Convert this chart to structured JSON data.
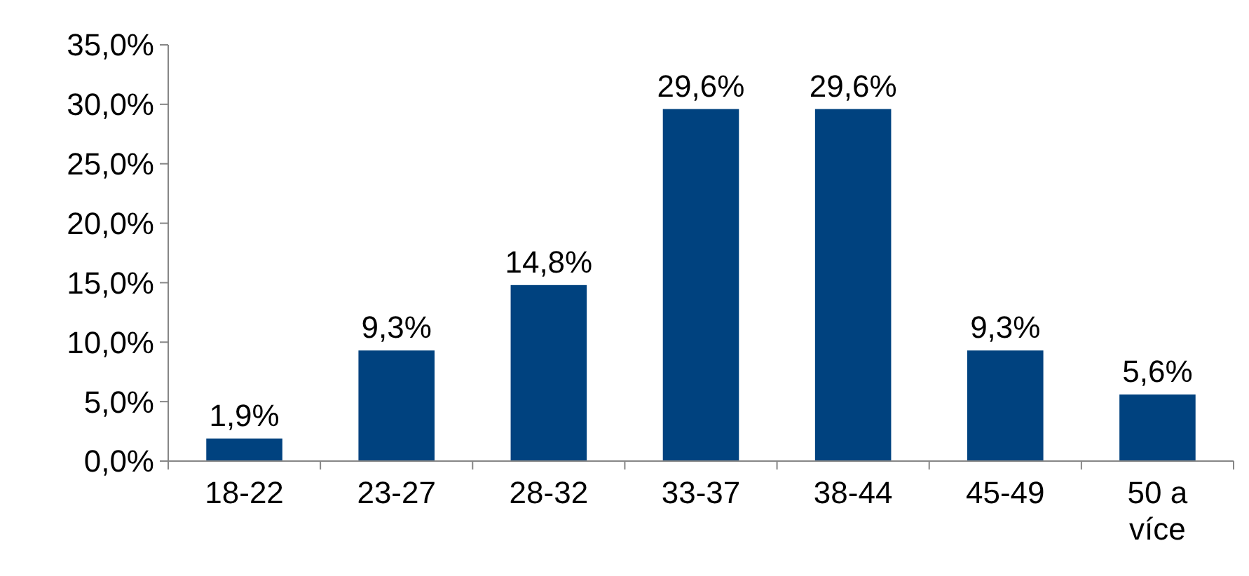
{
  "chart_data": {
    "type": "bar",
    "categories": [
      "18-22",
      "23-27",
      "28-32",
      "33-37",
      "38-44",
      "45-49",
      "50 a více"
    ],
    "values": [
      1.9,
      9.3,
      14.8,
      29.6,
      29.6,
      9.3,
      5.6
    ],
    "value_labels": [
      "1,9%",
      "9,3%",
      "14,8%",
      "29,6%",
      "29,6%",
      "9,3%",
      "5,6%"
    ],
    "color": "#00427f",
    "ylim": [
      0,
      35
    ],
    "yticks": [
      {
        "value": 0,
        "label": "0,0%"
      },
      {
        "value": 5,
        "label": "5,0%"
      },
      {
        "value": 10,
        "label": "10,0%"
      },
      {
        "value": 15,
        "label": "15,0%"
      },
      {
        "value": 20,
        "label": "20,0%"
      },
      {
        "value": 25,
        "label": "25,0%"
      },
      {
        "value": 30,
        "label": "30,0%"
      },
      {
        "value": 35,
        "label": "35,0%"
      }
    ],
    "grid": false
  }
}
